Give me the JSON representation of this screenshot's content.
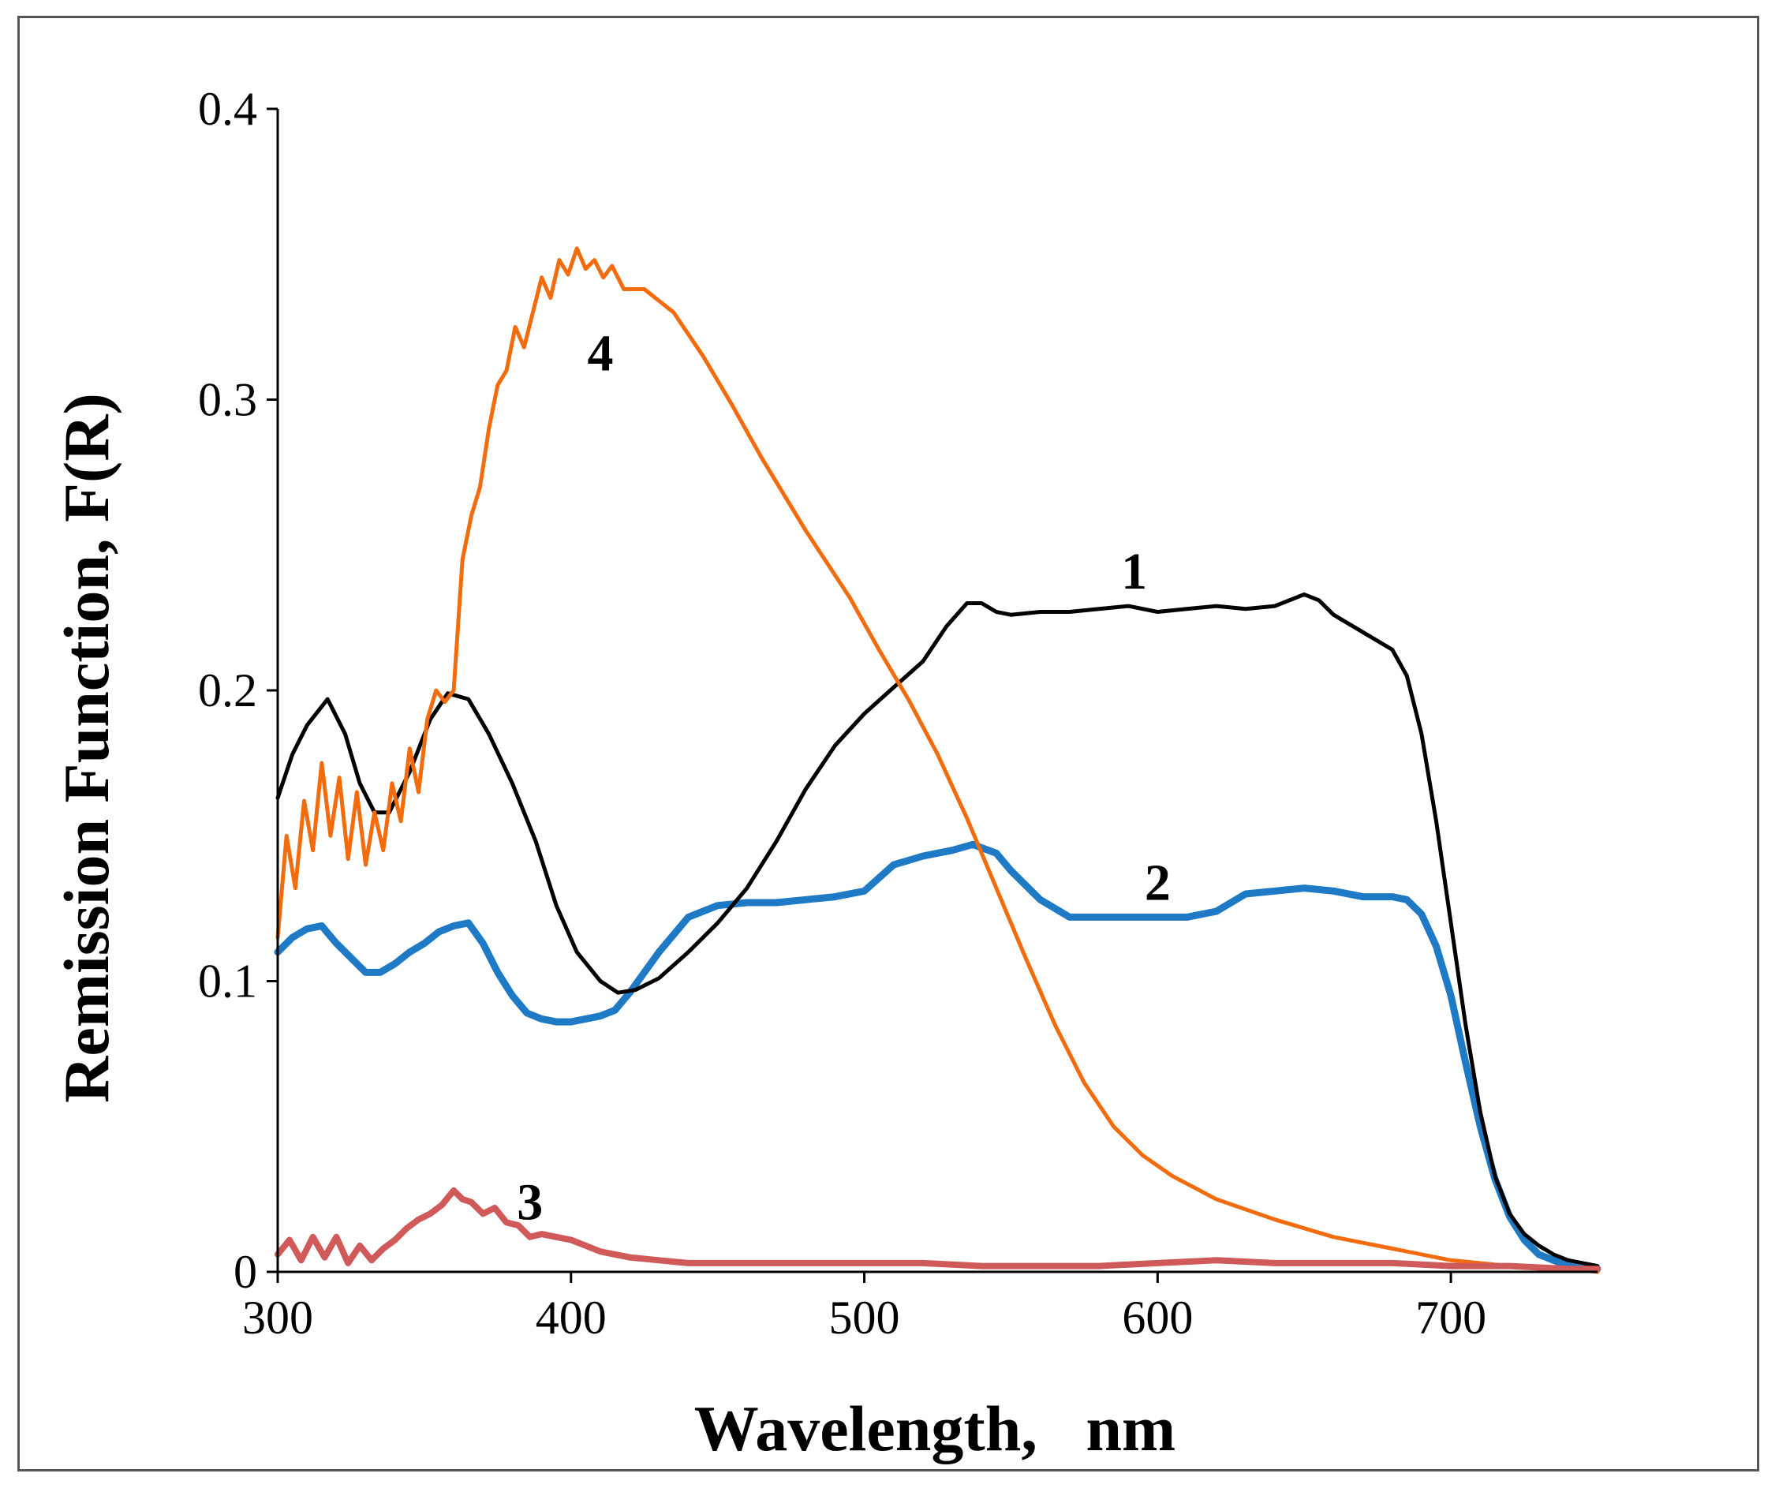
{
  "chart_data": {
    "type": "line",
    "title": "",
    "xlabel": "Wavelength,   nm",
    "ylabel": "Remission Function, F(R)",
    "xlim": [
      300,
      750
    ],
    "ylim": [
      0,
      0.4
    ],
    "xticks": [
      300,
      400,
      500,
      600,
      700
    ],
    "xtick_labels": [
      "300",
      "400",
      "500",
      "600",
      "700"
    ],
    "yticks": [
      0,
      0.1,
      0.2,
      0.3,
      0.4
    ],
    "ytick_labels": [
      "0",
      "0.1",
      "0.2",
      "0.3",
      "0.4"
    ],
    "grid": false,
    "series": [
      {
        "name": "1",
        "color": "#000000",
        "label_at": [
          592,
          0.235
        ],
        "x": [
          300,
          305,
          310,
          317,
          323,
          328,
          333,
          338,
          345,
          352,
          358,
          365,
          372,
          380,
          388,
          395,
          402,
          410,
          416,
          422,
          430,
          440,
          450,
          460,
          470,
          480,
          490,
          500,
          510,
          520,
          528,
          535,
          540,
          545,
          550,
          560,
          570,
          580,
          590,
          600,
          610,
          620,
          630,
          640,
          650,
          655,
          660,
          670,
          680,
          685,
          690,
          695,
          700,
          705,
          710,
          715,
          720,
          725,
          730,
          735,
          740,
          745,
          750
        ],
        "y": [
          0.163,
          0.178,
          0.188,
          0.197,
          0.185,
          0.168,
          0.158,
          0.158,
          0.172,
          0.19,
          0.199,
          0.197,
          0.185,
          0.168,
          0.148,
          0.126,
          0.11,
          0.1,
          0.096,
          0.097,
          0.101,
          0.11,
          0.12,
          0.132,
          0.148,
          0.166,
          0.181,
          0.192,
          0.201,
          0.21,
          0.222,
          0.23,
          0.23,
          0.227,
          0.226,
          0.227,
          0.227,
          0.228,
          0.229,
          0.227,
          0.228,
          0.229,
          0.228,
          0.229,
          0.233,
          0.231,
          0.226,
          0.22,
          0.214,
          0.205,
          0.185,
          0.155,
          0.12,
          0.085,
          0.055,
          0.033,
          0.02,
          0.013,
          0.009,
          0.006,
          0.004,
          0.003,
          0.002
        ]
      },
      {
        "name": "2",
        "color": "#1f7ac6",
        "label_at": [
          600,
          0.128
        ],
        "x": [
          300,
          305,
          310,
          315,
          320,
          325,
          330,
          335,
          340,
          345,
          350,
          355,
          360,
          365,
          370,
          375,
          380,
          385,
          390,
          395,
          400,
          405,
          410,
          415,
          420,
          430,
          440,
          450,
          460,
          470,
          480,
          490,
          500,
          510,
          520,
          530,
          537,
          545,
          550,
          560,
          570,
          580,
          590,
          600,
          610,
          620,
          630,
          640,
          650,
          660,
          670,
          680,
          685,
          690,
          695,
          700,
          705,
          710,
          715,
          720,
          725,
          730,
          735,
          740,
          745,
          750
        ],
        "y": [
          0.11,
          0.115,
          0.118,
          0.119,
          0.113,
          0.108,
          0.103,
          0.103,
          0.106,
          0.11,
          0.113,
          0.117,
          0.119,
          0.12,
          0.113,
          0.103,
          0.095,
          0.089,
          0.087,
          0.086,
          0.086,
          0.087,
          0.088,
          0.09,
          0.096,
          0.11,
          0.122,
          0.126,
          0.127,
          0.127,
          0.128,
          0.129,
          0.131,
          0.14,
          0.143,
          0.145,
          0.147,
          0.144,
          0.138,
          0.128,
          0.122,
          0.122,
          0.122,
          0.122,
          0.122,
          0.124,
          0.13,
          0.131,
          0.132,
          0.131,
          0.129,
          0.129,
          0.128,
          0.123,
          0.112,
          0.095,
          0.072,
          0.05,
          0.032,
          0.019,
          0.011,
          0.006,
          0.004,
          0.002,
          0.001,
          0.001
        ]
      },
      {
        "name": "3",
        "color": "#d05a5a",
        "label_at": [
          386,
          0.018
        ],
        "x": [
          300,
          304,
          308,
          312,
          316,
          320,
          324,
          328,
          332,
          336,
          340,
          344,
          348,
          352,
          356,
          360,
          363,
          366,
          370,
          374,
          378,
          382,
          386,
          390,
          395,
          400,
          405,
          410,
          415,
          420,
          430,
          440,
          450,
          460,
          470,
          480,
          490,
          500,
          520,
          540,
          560,
          580,
          600,
          620,
          640,
          660,
          680,
          700,
          720,
          740,
          750
        ],
        "y": [
          0.006,
          0.011,
          0.004,
          0.012,
          0.005,
          0.012,
          0.003,
          0.009,
          0.004,
          0.008,
          0.011,
          0.015,
          0.018,
          0.02,
          0.023,
          0.028,
          0.025,
          0.024,
          0.02,
          0.022,
          0.017,
          0.016,
          0.012,
          0.013,
          0.012,
          0.011,
          0.009,
          0.007,
          0.006,
          0.005,
          0.004,
          0.003,
          0.003,
          0.003,
          0.003,
          0.003,
          0.003,
          0.003,
          0.003,
          0.002,
          0.002,
          0.002,
          0.003,
          0.004,
          0.003,
          0.003,
          0.003,
          0.002,
          0.002,
          0.001,
          0.001
        ]
      },
      {
        "name": "4",
        "color": "#f26c0d",
        "label_at": [
          410,
          0.31
        ],
        "x": [
          300,
          303,
          306,
          309,
          312,
          315,
          318,
          321,
          324,
          327,
          330,
          333,
          336,
          339,
          342,
          345,
          348,
          351,
          354,
          357,
          360,
          363,
          366,
          369,
          372,
          375,
          378,
          381,
          384,
          387,
          390,
          393,
          396,
          399,
          402,
          405,
          408,
          411,
          414,
          418,
          425,
          435,
          445,
          455,
          465,
          480,
          495,
          505,
          515,
          525,
          535,
          545,
          555,
          565,
          575,
          585,
          595,
          605,
          620,
          640,
          660,
          680,
          700,
          720,
          740,
          750
        ],
        "y": [
          0.115,
          0.15,
          0.132,
          0.162,
          0.145,
          0.175,
          0.15,
          0.17,
          0.142,
          0.165,
          0.14,
          0.158,
          0.145,
          0.168,
          0.155,
          0.18,
          0.165,
          0.19,
          0.2,
          0.196,
          0.2,
          0.245,
          0.26,
          0.27,
          0.29,
          0.305,
          0.31,
          0.325,
          0.318,
          0.33,
          0.342,
          0.335,
          0.348,
          0.343,
          0.352,
          0.345,
          0.348,
          0.342,
          0.346,
          0.338,
          0.338,
          0.33,
          0.315,
          0.298,
          0.28,
          0.255,
          0.232,
          0.214,
          0.197,
          0.178,
          0.156,
          0.132,
          0.108,
          0.085,
          0.065,
          0.05,
          0.04,
          0.033,
          0.025,
          0.018,
          0.012,
          0.008,
          0.004,
          0.002,
          0.001,
          0.0
        ]
      }
    ]
  }
}
